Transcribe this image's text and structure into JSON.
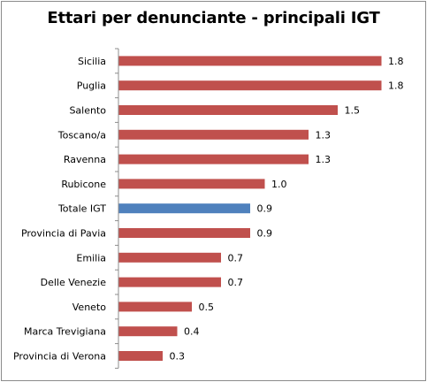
{
  "chart_data": {
    "type": "bar",
    "orientation": "horizontal",
    "title": "Ettari per denunciante  - principali  IGT",
    "categories": [
      "Sicilia",
      "Puglia",
      "Salento",
      "Toscano/a",
      "Ravenna",
      "Rubicone",
      "Totale IGT",
      "Provincia di Pavia",
      "Emilia",
      "Delle Venezie",
      "Veneto",
      "Marca Trevigiana",
      "Provincia di Verona"
    ],
    "values": [
      1.8,
      1.8,
      1.5,
      1.3,
      1.3,
      1.0,
      0.9,
      0.9,
      0.7,
      0.7,
      0.5,
      0.4,
      0.3
    ],
    "value_labels": [
      "1.8",
      "1.8",
      "1.5",
      "1.3",
      "1.3",
      "1.0",
      "0.9",
      "0.9",
      "0.7",
      "0.7",
      "0.5",
      "0.4",
      "0.3"
    ],
    "xlim": [
      0,
      1.8
    ],
    "grid": false,
    "legend": false,
    "colors": {
      "bar": "#c0504d",
      "highlight": "#4f81bd",
      "axis": "#8c8c8c"
    },
    "highlight_category": "Totale IGT"
  }
}
